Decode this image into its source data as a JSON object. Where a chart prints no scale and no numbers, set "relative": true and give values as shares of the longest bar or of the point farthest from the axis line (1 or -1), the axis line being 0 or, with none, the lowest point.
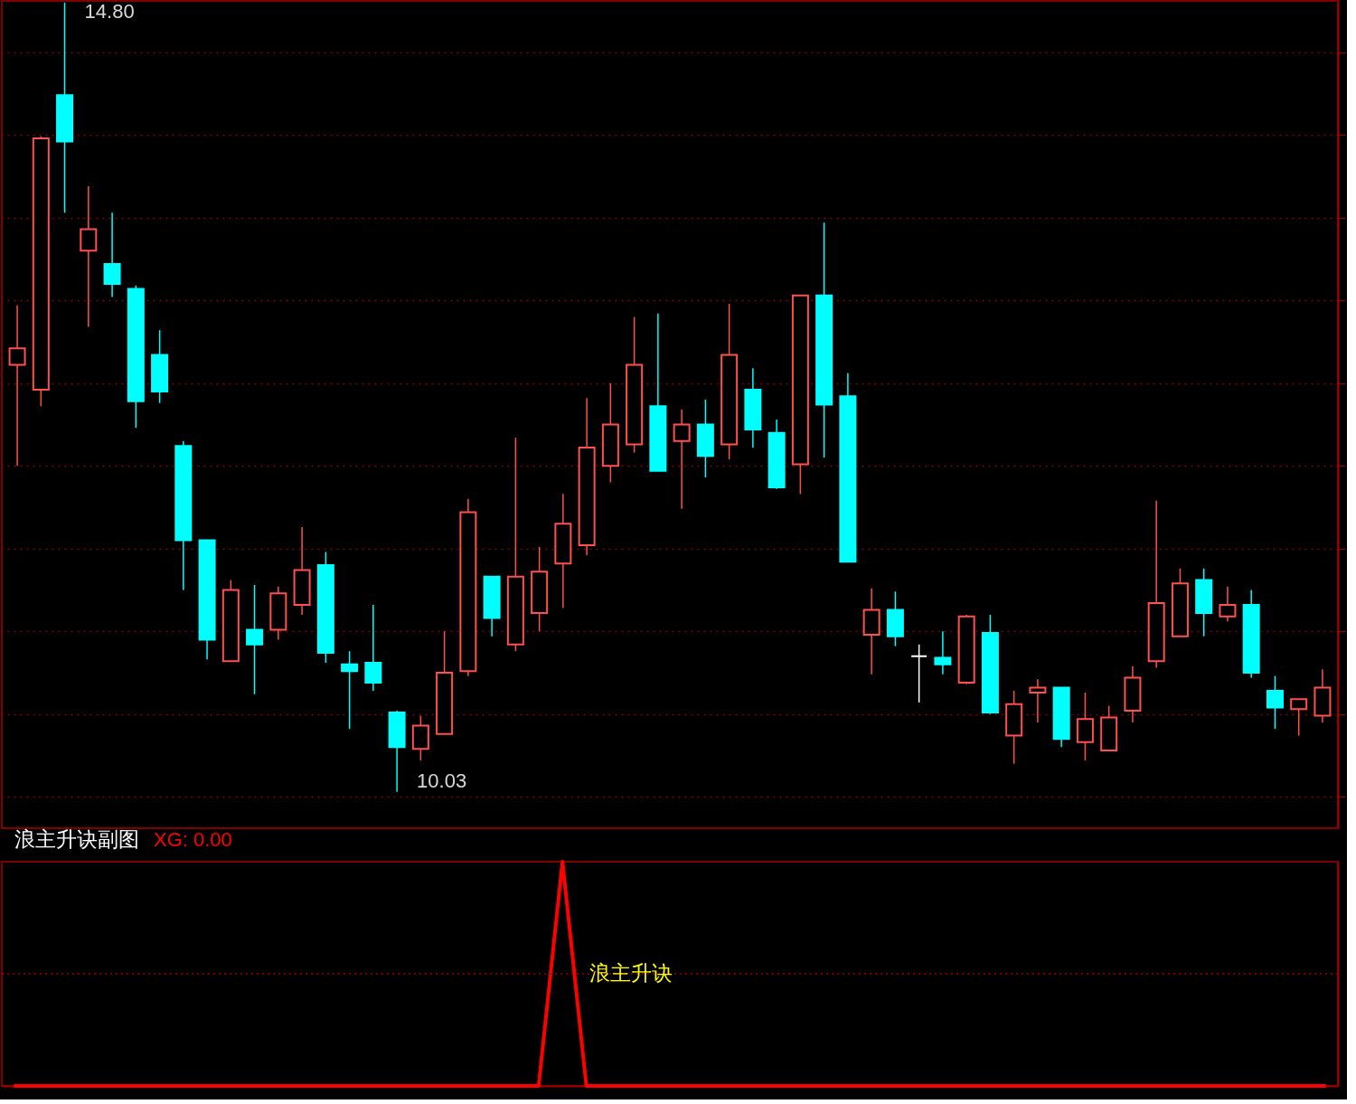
{
  "chart_data": [
    {
      "type": "candlestick",
      "categories": [
        null,
        null,
        null,
        null,
        null,
        null,
        null,
        null,
        null,
        null,
        null,
        null,
        null,
        null,
        null,
        null,
        null,
        null,
        null,
        null,
        null,
        null,
        null,
        null,
        null,
        null,
        null,
        null,
        null,
        null,
        null,
        null,
        null,
        null,
        null,
        null,
        null,
        null,
        null,
        null,
        null,
        null,
        null,
        null,
        null,
        null,
        null,
        null,
        null,
        null,
        null,
        null,
        null,
        null,
        null,
        null
      ],
      "ohlc": [
        [
          12.61,
          12.97,
          12.0,
          12.71
        ],
        [
          12.46,
          13.99,
          12.36,
          13.98
        ],
        [
          14.24,
          14.8,
          13.53,
          13.96
        ],
        [
          13.3,
          13.69,
          12.84,
          13.43
        ],
        [
          13.22,
          13.53,
          13.02,
          13.1
        ],
        [
          13.07,
          13.09,
          12.23,
          12.39
        ],
        [
          12.67,
          12.82,
          12.38,
          12.45
        ],
        [
          12.12,
          12.15,
          11.25,
          11.55
        ],
        [
          11.55,
          11.55,
          10.83,
          10.95
        ],
        [
          10.82,
          11.31,
          10.82,
          11.25
        ],
        [
          11.01,
          11.28,
          10.62,
          10.92
        ],
        [
          11.01,
          11.27,
          10.95,
          11.23
        ],
        [
          11.16,
          11.63,
          11.1,
          11.37
        ],
        [
          11.4,
          11.48,
          10.81,
          10.87
        ],
        [
          10.8,
          10.88,
          10.41,
          10.76
        ],
        [
          10.81,
          11.16,
          10.64,
          10.69
        ],
        [
          10.51,
          10.52,
          10.03,
          10.3
        ],
        [
          10.29,
          10.49,
          10.22,
          10.43
        ],
        [
          10.38,
          11.0,
          10.38,
          10.75
        ],
        [
          10.76,
          11.8,
          10.73,
          11.72
        ],
        [
          11.33,
          11.33,
          10.97,
          11.08
        ],
        [
          10.92,
          12.17,
          10.88,
          11.33
        ],
        [
          11.11,
          11.51,
          11.0,
          11.36
        ],
        [
          11.41,
          11.83,
          11.14,
          11.65
        ],
        [
          11.52,
          12.41,
          11.46,
          12.11
        ],
        [
          12.0,
          12.5,
          11.9,
          12.25
        ],
        [
          12.13,
          12.9,
          12.08,
          12.61
        ],
        [
          12.36,
          12.92,
          11.97,
          11.97
        ],
        [
          12.15,
          12.34,
          11.74,
          12.25
        ],
        [
          12.25,
          12.4,
          11.93,
          12.06
        ],
        [
          12.13,
          12.98,
          12.04,
          12.67
        ],
        [
          12.46,
          12.59,
          12.11,
          12.22
        ],
        [
          12.2,
          12.28,
          11.86,
          11.87
        ],
        [
          12.01,
          13.03,
          11.83,
          13.03
        ],
        [
          13.03,
          13.47,
          12.05,
          12.37
        ],
        [
          12.42,
          12.56,
          11.42,
          11.42
        ],
        [
          10.98,
          11.26,
          10.74,
          11.13
        ],
        [
          11.13,
          11.24,
          10.91,
          10.97
        ],
        [
          10.85,
          10.92,
          10.57,
          10.85
        ],
        [
          10.84,
          11.0,
          10.74,
          10.8
        ],
        [
          10.69,
          11.1,
          10.68,
          11.09
        ],
        [
          10.99,
          11.1,
          10.5,
          10.51
        ],
        [
          10.37,
          10.64,
          10.2,
          10.56
        ],
        [
          10.63,
          10.71,
          10.45,
          10.66
        ],
        [
          10.66,
          10.66,
          10.3,
          10.35
        ],
        [
          10.33,
          10.63,
          10.22,
          10.47
        ],
        [
          10.28,
          10.55,
          10.28,
          10.48
        ],
        [
          10.52,
          10.79,
          10.45,
          10.72
        ],
        [
          10.82,
          11.79,
          10.78,
          11.17
        ],
        [
          10.97,
          11.38,
          10.97,
          11.29
        ],
        [
          11.31,
          11.38,
          10.97,
          11.11
        ],
        [
          11.09,
          11.27,
          11.06,
          11.16
        ],
        [
          11.16,
          11.25,
          10.72,
          10.75
        ],
        [
          10.64,
          10.73,
          10.41,
          10.54
        ],
        [
          10.53,
          10.59,
          10.37,
          10.59
        ],
        [
          10.49,
          10.77,
          10.45,
          10.66
        ]
      ],
      "colors": [
        "#ff4f4f",
        "#ff4f4f",
        "#00ffff",
        "#ff4f4f",
        "#00ffff",
        "#00ffff",
        "#00ffff",
        "#00ffff",
        "#00ffff",
        "#ff4f4f",
        "#00ffff",
        "#ff4f4f",
        "#ff4f4f",
        "#00ffff",
        "#00ffff",
        "#00ffff",
        "#00ffff",
        "#ff4f4f",
        "#ff4f4f",
        "#ff4f4f",
        "#00ffff",
        "#ff4f4f",
        "#ff4f4f",
        "#ff4f4f",
        "#ff4f4f",
        "#ff4f4f",
        "#ff4f4f",
        "#00ffff",
        "#ff4f4f",
        "#00ffff",
        "#ff4f4f",
        "#00ffff",
        "#00ffff",
        "#ff4f4f",
        "#00ffff",
        "#00ffff",
        "#ff4f4f",
        "#00ffff",
        "#ffffff",
        "#00ffff",
        "#ff4f4f",
        "#00ffff",
        "#ff4f4f",
        "#ff4f4f",
        "#00ffff",
        "#ff4f4f",
        "#ff4f4f",
        "#ff4f4f",
        "#ff4f4f",
        "#ff4f4f",
        "#00ffff",
        "#ff4f4f",
        "#00ffff",
        "#00ffff",
        "#ff4f4f",
        "#ff4f4f"
      ],
      "ylim": [
        9.81,
        14.81
      ],
      "yticks": [
        {
          "value": 10.0,
          "label": null
        },
        {
          "value": 10.5,
          "label": null
        },
        {
          "value": 11.0,
          "label": null
        },
        {
          "value": 11.5,
          "label": null
        },
        {
          "value": 12.0,
          "label": null
        },
        {
          "value": 12.5,
          "label": null
        },
        {
          "value": 13.0,
          "label": null
        },
        {
          "value": 13.5,
          "label": null
        },
        {
          "value": 14.0,
          "label": null
        },
        {
          "value": 14.5,
          "label": null
        }
      ],
      "grid": "y",
      "tick_labels": false,
      "annotations": [
        "14.80",
        "10.03"
      ]
    },
    {
      "type": "line",
      "title": "浪主升诀副图",
      "categories": [
        null,
        null,
        null,
        null,
        null,
        null,
        null,
        null,
        null,
        null,
        null,
        null,
        null,
        null,
        null,
        null,
        null,
        null,
        null,
        null,
        null,
        null,
        null,
        null,
        null,
        null,
        null,
        null,
        null,
        null,
        null,
        null,
        null,
        null,
        null,
        null,
        null,
        null,
        null,
        null,
        null,
        null,
        null,
        null,
        null,
        null,
        null,
        null,
        null,
        null,
        null,
        null,
        null,
        null,
        null,
        null
      ],
      "series": [
        {
          "color": "#ff0000",
          "values": [
            0,
            0,
            0,
            0,
            0,
            0,
            0,
            0,
            0,
            0,
            0,
            0,
            0,
            0,
            0,
            0,
            0,
            0,
            0,
            0,
            0,
            0,
            0,
            1,
            0,
            0,
            0,
            0,
            0,
            0,
            0,
            0,
            0,
            0,
            0,
            0,
            0,
            0,
            0,
            0,
            0,
            0,
            0,
            0,
            0,
            0,
            0,
            0,
            0,
            0,
            0,
            0,
            0,
            0,
            0,
            0
          ]
        }
      ],
      "relative": true,
      "ref_lines": [
        {
          "axis": "y",
          "value": 0.5,
          "color": "#990000",
          "line_style": "dotted"
        }
      ],
      "tick_labels": false,
      "annotations": [
        "XG: 0.00",
        {
          "text": "浪主升诀",
          "y": 0.5
        }
      ]
    }
  ]
}
